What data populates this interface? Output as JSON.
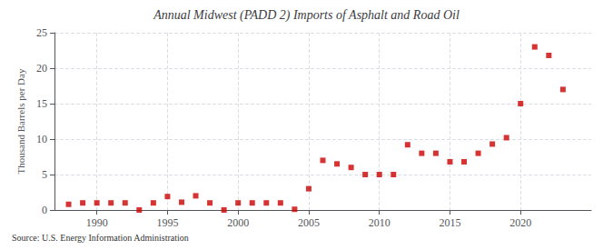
{
  "chart_data": {
    "type": "scatter",
    "title": "Annual Midwest (PADD 2) Imports of Asphalt and Road Oil",
    "ylabel": "Thousand Barrels per Day",
    "source": "Source: U.S. Energy Information Administration",
    "x": [
      1988,
      1989,
      1990,
      1991,
      1992,
      1993,
      1994,
      1995,
      1996,
      1997,
      1998,
      1999,
      2000,
      2001,
      2002,
      2003,
      2004,
      2005,
      2006,
      2007,
      2008,
      2009,
      2010,
      2011,
      2012,
      2013,
      2014,
      2015,
      2016,
      2017,
      2018,
      2019,
      2020,
      2021,
      2022,
      2023
    ],
    "values": [
      0.8,
      1.0,
      1.0,
      1.0,
      1.0,
      0.0,
      1.0,
      1.9,
      1.1,
      2.0,
      1.0,
      0.0,
      1.0,
      1.0,
      1.0,
      1.0,
      0.1,
      3.0,
      7.0,
      6.5,
      6.0,
      5.0,
      5.0,
      5.0,
      9.2,
      8.0,
      8.0,
      6.8,
      6.8,
      8.0,
      9.3,
      10.2,
      15.0,
      23.0,
      21.8,
      17.0
    ],
    "color": "#CC0000",
    "marker": "square",
    "xlim": [
      1987,
      2025
    ],
    "xticks": [
      1990,
      1995,
      2000,
      2005,
      2010,
      2015,
      2020
    ],
    "ylim": [
      0,
      25
    ],
    "yticks": [
      0,
      5,
      10,
      15,
      20,
      25
    ],
    "grid": true
  }
}
